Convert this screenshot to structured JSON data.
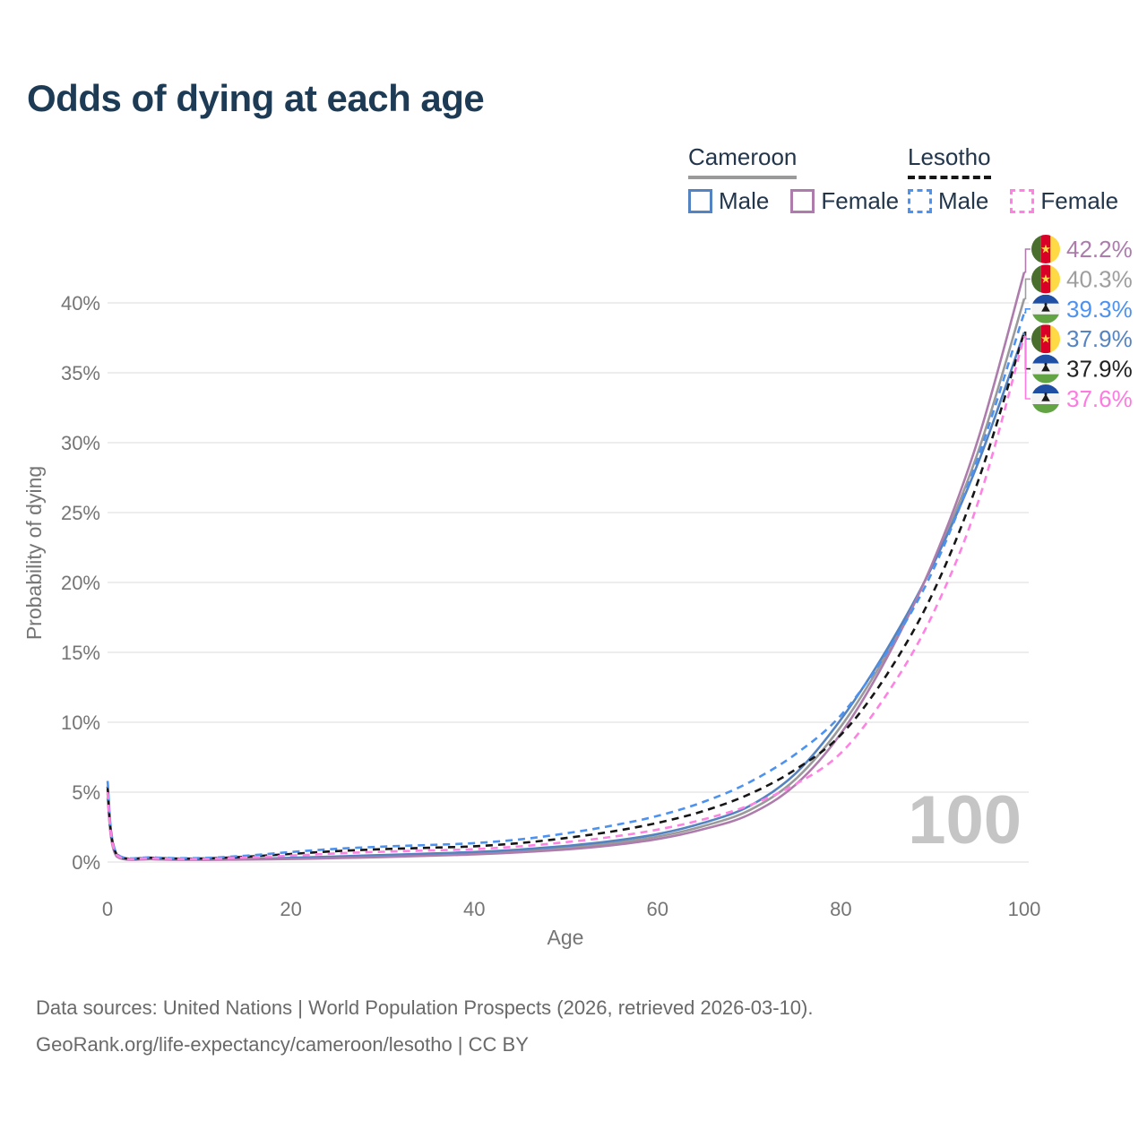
{
  "title": "Odds of dying at each age",
  "legend": {
    "groups": [
      {
        "name": "Cameroon",
        "underline_style": "solid",
        "underline_color": "#9a9a9a",
        "items": [
          {
            "label": "Male",
            "color": "#5483c1",
            "line_style": "solid"
          },
          {
            "label": "Female",
            "color": "#ad7cac",
            "line_style": "solid"
          }
        ]
      },
      {
        "name": "Lesotho",
        "underline_style": "dashed",
        "underline_color": "#161616",
        "items": [
          {
            "label": "Male",
            "color": "#4c92f0",
            "line_style": "dashed"
          },
          {
            "label": "Female",
            "color": "#ff82e2",
            "line_style": "dashed"
          }
        ]
      }
    ]
  },
  "chart_data": {
    "type": "line",
    "title": "Odds of dying at each age",
    "xlabel": "Age",
    "ylabel": "Probability of dying",
    "xlim": [
      0,
      100
    ],
    "ylim": [
      0,
      44
    ],
    "grid": "horizontal",
    "x_ticks": [
      0,
      20,
      40,
      60,
      80,
      100
    ],
    "y_tick_values": [
      0,
      5,
      10,
      15,
      20,
      25,
      30,
      35,
      40
    ],
    "y_tick_labels": [
      "0%",
      "5%",
      "10%",
      "15%",
      "20%",
      "25%",
      "30%",
      "35%",
      "40%"
    ],
    "hover_age_watermark": "100",
    "ages": [
      0,
      1,
      5,
      10,
      15,
      20,
      25,
      30,
      35,
      40,
      45,
      50,
      55,
      60,
      65,
      70,
      75,
      80,
      85,
      90,
      95,
      100
    ],
    "series": [
      {
        "name": "Cameroon",
        "country": "cameroon",
        "sex": "both",
        "color": "#9a9a9a",
        "dashed": false,
        "values": [
          4.9,
          0.42,
          0.21,
          0.17,
          0.2,
          0.26,
          0.34,
          0.43,
          0.52,
          0.63,
          0.8,
          1.02,
          1.35,
          1.82,
          2.57,
          3.7,
          5.9,
          9.7,
          14.9,
          21.3,
          29.4,
          40.3
        ]
      },
      {
        "name": "Cameroon Male",
        "country": "cameroon",
        "sex": "male",
        "color": "#5483c1",
        "dashed": false,
        "values": [
          5.2,
          0.45,
          0.22,
          0.18,
          0.22,
          0.3,
          0.4,
          0.5,
          0.6,
          0.72,
          0.9,
          1.15,
          1.5,
          2.0,
          2.8,
          4.0,
          6.3,
          10.2,
          15.2,
          21.2,
          28.6,
          37.9
        ]
      },
      {
        "name": "Cameroon Female",
        "country": "cameroon",
        "sex": "female",
        "color": "#ad7cac",
        "dashed": false,
        "values": [
          4.6,
          0.4,
          0.2,
          0.16,
          0.18,
          0.22,
          0.28,
          0.36,
          0.45,
          0.55,
          0.7,
          0.9,
          1.2,
          1.65,
          2.35,
          3.4,
          5.5,
          9.2,
          14.6,
          21.4,
          30.3,
          42.2
        ]
      },
      {
        "name": "Lesotho",
        "country": "lesotho",
        "sex": "both",
        "color": "#161616",
        "dashed": true,
        "values": [
          5.4,
          0.55,
          0.3,
          0.25,
          0.38,
          0.58,
          0.78,
          0.92,
          1.02,
          1.13,
          1.36,
          1.72,
          2.18,
          2.8,
          3.65,
          4.85,
          6.6,
          9.1,
          13.4,
          19.2,
          27.3,
          37.9
        ]
      },
      {
        "name": "Lesotho Male",
        "country": "lesotho",
        "sex": "male",
        "color": "#4c92f0",
        "dashed": true,
        "values": [
          5.8,
          0.6,
          0.33,
          0.28,
          0.45,
          0.72,
          0.95,
          1.1,
          1.22,
          1.35,
          1.62,
          2.05,
          2.6,
          3.3,
          4.3,
          5.7,
          7.7,
          10.5,
          15.0,
          20.8,
          29.0,
          39.3
        ]
      },
      {
        "name": "Lesotho Female",
        "country": "lesotho",
        "sex": "female",
        "color": "#ff82e2",
        "dashed": true,
        "values": [
          5.0,
          0.5,
          0.27,
          0.22,
          0.32,
          0.46,
          0.62,
          0.74,
          0.83,
          0.92,
          1.12,
          1.42,
          1.8,
          2.32,
          3.05,
          4.05,
          5.55,
          7.8,
          12.0,
          17.7,
          25.8,
          37.6
        ]
      }
    ],
    "end_labels": [
      {
        "flag": "cameroon",
        "text": "42.2%",
        "color": "#ad7cac",
        "value": 42.2
      },
      {
        "flag": "cameroon",
        "text": "40.3%",
        "color": "#9e9e9e",
        "value": 40.3
      },
      {
        "flag": "lesotho",
        "text": "39.3%",
        "color": "#4c92f0",
        "value": 39.3
      },
      {
        "flag": "cameroon",
        "text": "37.9%",
        "color": "#5584c4",
        "value": 37.9
      },
      {
        "flag": "lesotho",
        "text": "37.9%",
        "color": "#222222",
        "value": 37.9
      },
      {
        "flag": "lesotho",
        "text": "37.6%",
        "color": "#ff7ae0",
        "value": 37.6
      }
    ]
  },
  "source": {
    "line1": "Data sources: United Nations | World Population Prospects (2026, retrieved 2026-03-10).",
    "line2": "GeoRank.org/life-expectancy/cameroon/lesotho | CC BY"
  },
  "colors": {
    "grid": "#e7e7e7",
    "axis_text": "#757575",
    "watermark": "#c5c5c5"
  }
}
